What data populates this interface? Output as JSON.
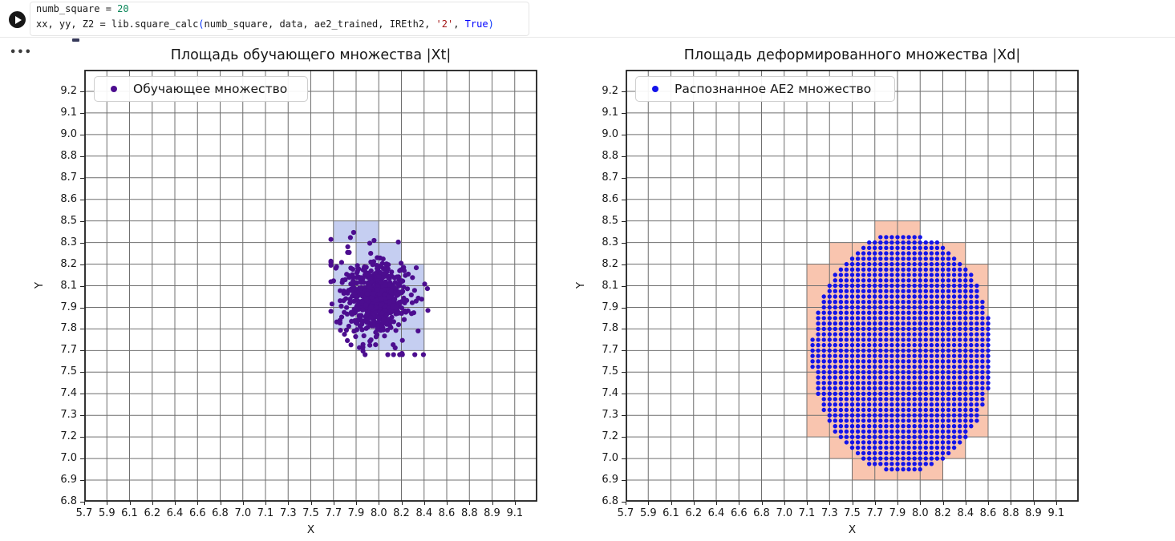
{
  "notebook": {
    "more_actions": "•••",
    "token_colors": {
      "default": "#1a1a1a",
      "number": "#098658",
      "string": "#a31515",
      "keyword": "#0000ff",
      "bracket": "#0431fa"
    },
    "code_lines": [
      {
        "tokens": [
          {
            "text": "numb_square = ",
            "color": "default"
          },
          {
            "text": "20",
            "color": "number"
          }
        ]
      },
      {
        "tokens": [
          {
            "text": "xx, yy, Z2 = lib.square_calc",
            "color": "default"
          },
          {
            "text": "(",
            "color": "bracket"
          },
          {
            "text": "numb_square, data, ae2_trained, IREth2, ",
            "color": "default"
          },
          {
            "text": "'2'",
            "color": "string"
          },
          {
            "text": ", ",
            "color": "default"
          },
          {
            "text": "True",
            "color": "keyword"
          },
          {
            "text": ")",
            "color": "bracket"
          }
        ]
      }
    ]
  },
  "chart_data": [
    {
      "type": "scatter",
      "title": "Площадь обучающего множества |Xt|",
      "xlabel": "X",
      "ylabel": "Y",
      "legend": [
        {
          "label": "Обучающее множество",
          "color": "#4c0d8f"
        }
      ],
      "grid": true,
      "grid_divisions": 20,
      "x_range": [
        5.7,
        9.3
      ],
      "y_range": [
        6.8,
        9.326
      ],
      "x_ticks": [
        "5.7",
        "5.9",
        "6.1",
        "6.2",
        "6.4",
        "6.6",
        "6.8",
        "7.0",
        "7.1",
        "7.3",
        "7.5",
        "7.7",
        "7.9",
        "8.0",
        "8.2",
        "8.4",
        "8.6",
        "8.8",
        "8.9",
        "9.1"
      ],
      "y_ticks": [
        "6.8",
        "6.9",
        "7.0",
        "7.2",
        "7.3",
        "7.4",
        "7.5",
        "7.7",
        "7.8",
        "7.9",
        "8.1",
        "8.2",
        "8.3",
        "8.5",
        "8.6",
        "8.7",
        "8.8",
        "9.0",
        "9.1",
        "9.2"
      ],
      "highlight_squares": {
        "color": "#c5cef1",
        "cells": [
          [
            11,
            12
          ],
          [
            12,
            12
          ],
          [
            12,
            11
          ],
          [
            13,
            11
          ],
          [
            11,
            10
          ],
          [
            12,
            10
          ],
          [
            13,
            10
          ],
          [
            14,
            10
          ],
          [
            11,
            9
          ],
          [
            12,
            9
          ],
          [
            13,
            9
          ],
          [
            14,
            9
          ],
          [
            11,
            8
          ],
          [
            12,
            8
          ],
          [
            13,
            8
          ],
          [
            14,
            8
          ],
          [
            12,
            7
          ],
          [
            13,
            7
          ],
          [
            14,
            7
          ]
        ]
      },
      "scatter": {
        "kind": "gaussian_cluster",
        "color": "#4c0d8f",
        "point_radius_px": 3.1,
        "clusters": [
          {
            "n": 430,
            "center": [
              8.03,
              7.99
            ],
            "std": [
              0.105,
              0.096
            ]
          },
          {
            "n": 240,
            "center": [
              8.02,
              7.98
            ],
            "std": [
              0.172,
              0.145
            ]
          }
        ],
        "clip": {
          "x": [
            7.66,
            8.43
          ],
          "y": [
            7.66,
            8.38
          ]
        },
        "outliers": [
          [
            7.84,
            8.375
          ],
          [
            7.815,
            8.345
          ],
          [
            8.3,
            7.9
          ],
          [
            8.17,
            7.7
          ]
        ]
      }
    },
    {
      "type": "scatter",
      "title": "Площадь деформированного множества |Xd|",
      "xlabel": "X",
      "ylabel": "Y",
      "legend": [
        {
          "label": "Распознанное AE2 множество",
          "color": "#1313ea"
        }
      ],
      "grid": true,
      "grid_divisions": 20,
      "x_range": [
        5.7,
        9.3
      ],
      "y_range": [
        6.8,
        9.326
      ],
      "x_ticks": [
        "5.7",
        "5.9",
        "6.1",
        "6.2",
        "6.4",
        "6.6",
        "6.8",
        "7.0",
        "7.1",
        "7.3",
        "7.5",
        "7.7",
        "7.9",
        "8.0",
        "8.2",
        "8.4",
        "8.6",
        "8.8",
        "8.9",
        "9.1"
      ],
      "y_ticks": [
        "6.8",
        "6.9",
        "7.0",
        "7.2",
        "7.3",
        "7.4",
        "7.5",
        "7.7",
        "7.8",
        "7.9",
        "8.1",
        "8.2",
        "8.3",
        "8.5",
        "8.6",
        "8.7",
        "8.8",
        "9.0",
        "9.1",
        "9.2"
      ],
      "highlight_squares": {
        "color": "#f9c5af",
        "cells": [
          [
            11,
            12
          ],
          [
            12,
            12
          ],
          [
            9,
            11
          ],
          [
            10,
            11
          ],
          [
            11,
            11
          ],
          [
            12,
            11
          ],
          [
            13,
            11
          ],
          [
            14,
            11
          ],
          [
            8,
            10
          ],
          [
            9,
            10
          ],
          [
            10,
            10
          ],
          [
            11,
            10
          ],
          [
            12,
            10
          ],
          [
            13,
            10
          ],
          [
            14,
            10
          ],
          [
            15,
            10
          ],
          [
            8,
            9
          ],
          [
            9,
            9
          ],
          [
            10,
            9
          ],
          [
            11,
            9
          ],
          [
            12,
            9
          ],
          [
            13,
            9
          ],
          [
            14,
            9
          ],
          [
            15,
            9
          ],
          [
            8,
            8
          ],
          [
            9,
            8
          ],
          [
            10,
            8
          ],
          [
            11,
            8
          ],
          [
            12,
            8
          ],
          [
            13,
            8
          ],
          [
            14,
            8
          ],
          [
            15,
            8
          ],
          [
            8,
            7
          ],
          [
            9,
            7
          ],
          [
            10,
            7
          ],
          [
            11,
            7
          ],
          [
            12,
            7
          ],
          [
            13,
            7
          ],
          [
            14,
            7
          ],
          [
            15,
            7
          ],
          [
            8,
            6
          ],
          [
            9,
            6
          ],
          [
            10,
            6
          ],
          [
            11,
            6
          ],
          [
            12,
            6
          ],
          [
            13,
            6
          ],
          [
            14,
            6
          ],
          [
            15,
            6
          ],
          [
            8,
            5
          ],
          [
            9,
            5
          ],
          [
            10,
            5
          ],
          [
            11,
            5
          ],
          [
            12,
            5
          ],
          [
            13,
            5
          ],
          [
            14,
            5
          ],
          [
            15,
            5
          ],
          [
            8,
            4
          ],
          [
            9,
            4
          ],
          [
            10,
            4
          ],
          [
            11,
            4
          ],
          [
            12,
            4
          ],
          [
            13,
            4
          ],
          [
            14,
            4
          ],
          [
            15,
            4
          ],
          [
            8,
            3
          ],
          [
            9,
            3
          ],
          [
            10,
            3
          ],
          [
            11,
            3
          ],
          [
            12,
            3
          ],
          [
            13,
            3
          ],
          [
            14,
            3
          ],
          [
            15,
            3
          ],
          [
            9,
            2
          ],
          [
            10,
            2
          ],
          [
            11,
            2
          ],
          [
            12,
            2
          ],
          [
            13,
            2
          ],
          [
            14,
            2
          ],
          [
            10,
            1
          ],
          [
            11,
            1
          ],
          [
            12,
            1
          ],
          [
            13,
            1
          ]
        ]
      },
      "scatter": {
        "kind": "lattice_ellipse",
        "color": "#1313ea",
        "point_radius_px": 2.7,
        "lattice": {
          "x0": 5.7,
          "y0": 6.8,
          "x_step": 0.045,
          "y_step": 0.0315789
        },
        "ellipse": {
          "cx": 7.9,
          "cy": 7.67,
          "rx": 0.72,
          "ry": 0.7
        }
      }
    }
  ]
}
